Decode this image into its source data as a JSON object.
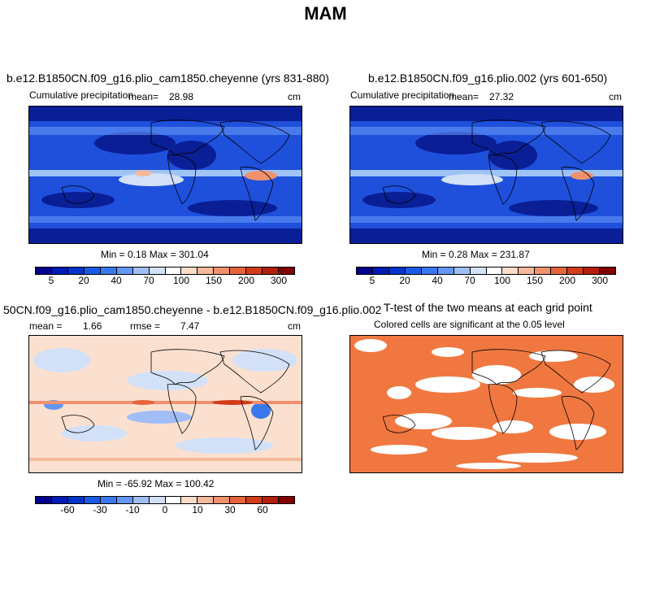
{
  "title": "MAM",
  "panels": {
    "p1": {
      "title": "b.e12.B1850CN.f09_g16.plio_cam1850.cheyenne (yrs 831-880)",
      "left_label": "Cumulative precipitation",
      "mean_label": "mean=",
      "mean_value": "28.98",
      "units": "cm",
      "minmax": "Min =   0.18 Max = 301.04"
    },
    "p2": {
      "title": "b.e12.B1850CN.f09_g16.plio.002 (yrs 601-650)",
      "left_label": "Cumulative precipitation",
      "mean_label": "mean=",
      "mean_value": "27.32",
      "units": "cm",
      "minmax": "Min =   0.28 Max = 231.87"
    },
    "p3": {
      "title": "50CN.f09_g16.plio_cam1850.cheyenne - b.e12.B1850CN.f09_g16.plio.002",
      "mean_label": "mean =",
      "mean_value": "1.66",
      "rmse_label": "rmse =",
      "rmse_value": "7.47",
      "units": "cm",
      "minmax": "Min = -65.92 Max = 100.42"
    },
    "p4": {
      "title": "T-test of the two means at each grid point",
      "subtitle": "Colored cells are significant at the 0.05 level"
    }
  },
  "colorbars": {
    "precip": {
      "colors": [
        "#00008c",
        "#001ab4",
        "#0033cc",
        "#1a5ae6",
        "#3a78f0",
        "#6496f5",
        "#a0bef5",
        "#d2e1f8",
        "#ffffff",
        "#fadcc8",
        "#f5b99b",
        "#f0916e",
        "#e6643c",
        "#d23c19",
        "#b41e0a",
        "#820000"
      ],
      "tick_labels": [
        "5",
        "20",
        "40",
        "70",
        "100",
        "150",
        "200",
        "300"
      ]
    },
    "diff": {
      "colors": [
        "#00008c",
        "#001ab4",
        "#0033cc",
        "#1a5ae6",
        "#3a78f0",
        "#6496f5",
        "#a0bef5",
        "#d2e1f8",
        "#ffffff",
        "#fadcc8",
        "#f5b99b",
        "#f0916e",
        "#e6643c",
        "#d23c19",
        "#b41e0a",
        "#820000"
      ],
      "tick_labels": [
        "-60",
        "-30",
        "-10",
        "0",
        "10",
        "30",
        "60"
      ]
    }
  },
  "colors": {
    "precip_background": "#1e50dc",
    "precip_dry": "#0a1e96",
    "precip_wet": "#a0c3f5",
    "diff_background": "#fbe0d0",
    "ttest_fill": "#f07840"
  }
}
